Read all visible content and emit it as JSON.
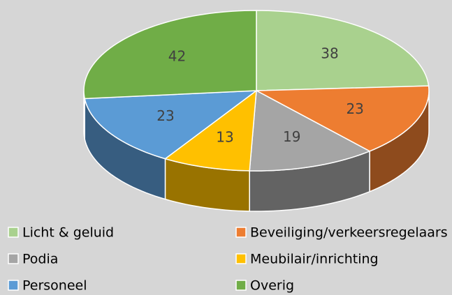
{
  "chart_data": {
    "type": "pie3d",
    "categories": [
      "Licht & geluid",
      "Beveiliging/verkeersregelaars",
      "Podia",
      "Meubilair/inrichting",
      "Personeel",
      "Overig"
    ],
    "values": [
      38,
      23,
      19,
      13,
      23,
      42
    ],
    "colors": [
      "#a9d18e",
      "#ed7d31",
      "#a5a5a5",
      "#ffc000",
      "#5b9bd5",
      "#70ad47"
    ],
    "legend": "bottom"
  }
}
